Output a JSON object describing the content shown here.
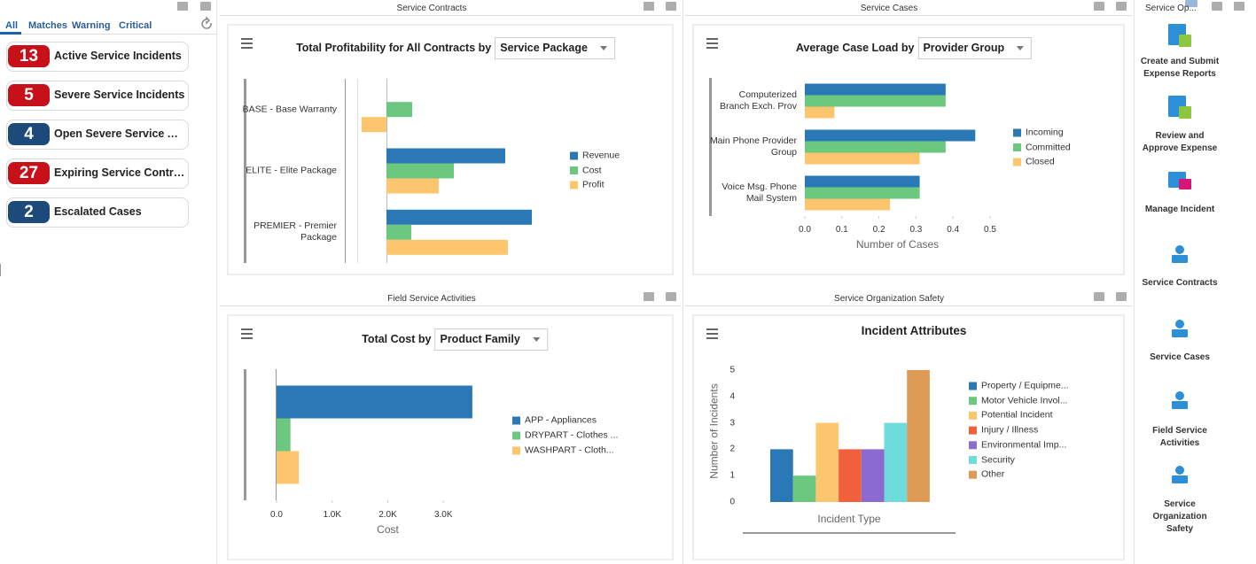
{
  "alerts": {
    "tabs": [
      "All",
      "Matches",
      "Warning",
      "Critical"
    ],
    "active_tab": 0,
    "items": [
      {
        "count": 13,
        "label": "Active Service Incidents",
        "color": "#c8101a"
      },
      {
        "count": 5,
        "label": "Severe Service Incidents",
        "color": "#c8101a"
      },
      {
        "count": 4,
        "label": "Open Severe Service Al...",
        "color": "#1d4a7a"
      },
      {
        "count": 27,
        "label": "Expiring Service Contra...",
        "color": "#c8101a"
      },
      {
        "count": 2,
        "label": "Escalated Cases",
        "color": "#1d4a7a"
      }
    ]
  },
  "panels": [
    "Service Contracts",
    "Service Cases",
    "Field Service Activities",
    "Service Organization Safety"
  ],
  "chart_data": [
    {
      "type": "bar",
      "orientation": "horizontal",
      "title": "Total Profitability for All Contracts by",
      "dropdown": "Service Package",
      "categories": [
        "BASE - Base Warranty",
        "ELITE - Elite Package",
        "PREMIER - Premier Package"
      ],
      "series": [
        {
          "name": "Revenue",
          "color": "#2a78b5",
          "values": [
            null,
            134,
            164
          ]
        },
        {
          "name": "Cost",
          "color": "#6cc77f",
          "values": [
            29,
            76,
            28
          ]
        },
        {
          "name": "Profit",
          "color": "#fdc66e",
          "values": [
            -28,
            59,
            137
          ]
        }
      ],
      "xlim": [
        -33,
        190
      ]
    },
    {
      "type": "bar",
      "orientation": "horizontal",
      "title": "Average Case Load by",
      "dropdown": "Provider Group",
      "categories": [
        "Computerized Branch Exch. Prov",
        "Main Phone Provider Group",
        "Voice Msg. Phone Mail System"
      ],
      "series": [
        {
          "name": "Incoming",
          "color": "#2a78b5",
          "values": [
            0.38,
            0.46,
            0.31
          ]
        },
        {
          "name": "Committed",
          "color": "#6cc77f",
          "values": [
            0.38,
            0.38,
            0.31
          ]
        },
        {
          "name": "Closed",
          "color": "#fdc66e",
          "values": [
            0.08,
            0.31,
            0.23
          ]
        }
      ],
      "xlim": [
        0,
        0.5
      ],
      "xticks": [
        {
          "value": 0,
          "label": "0.0"
        },
        0.1,
        0.2,
        0.3,
        0.4,
        0.5
      ],
      "xlabel": "Number of Cases"
    },
    {
      "type": "bar",
      "orientation": "horizontal",
      "title": "Total Cost by",
      "dropdown": "Product Family",
      "categories": [
        null
      ],
      "series": [
        {
          "name": "APP - Appliances",
          "color": "#2a78b5",
          "values": [
            3520
          ]
        },
        {
          "name": "DRYPART - Clothes ...",
          "color": "#6cc77f",
          "values": [
            250
          ]
        },
        {
          "name": "WASHPART - Cloth...",
          "color": "#fdc66e",
          "values": [
            400
          ]
        }
      ],
      "xlim": [
        0,
        4000
      ],
      "xticks": [
        {
          "value": 0,
          "label": "0.0"
        },
        {
          "value": 1000,
          "label": "1.0K"
        },
        {
          "value": 2000,
          "label": "2.0K"
        },
        {
          "value": 3000,
          "label": "3.0K"
        }
      ],
      "xlabel": "Cost"
    },
    {
      "type": "bar",
      "orientation": "vertical",
      "title": "Incident Attributes",
      "categories": [
        null
      ],
      "series": [
        {
          "name": "Property / Equipme...",
          "color": "#2a78b5",
          "values": [
            2
          ]
        },
        {
          "name": "Motor Vehicle Invol...",
          "color": "#6cc77f",
          "values": [
            1
          ]
        },
        {
          "name": "Potential Incident",
          "color": "#fdc66e",
          "values": [
            3
          ]
        },
        {
          "name": "Injury / Illness",
          "color": "#f0603c",
          "values": [
            2
          ]
        },
        {
          "name": "Environmental Imp...",
          "color": "#8c6bd0",
          "values": [
            2
          ]
        },
        {
          "name": "Security",
          "color": "#6fdcdc",
          "values": [
            3
          ]
        },
        {
          "name": "Other",
          "color": "#de9b55",
          "values": [
            5
          ]
        }
      ],
      "ylim": [
        0,
        5
      ],
      "yticks": [
        0,
        1,
        2,
        3,
        4,
        5
      ],
      "xlabel": "Incident Type",
      "ylabel": "Number of Incidents"
    }
  ],
  "quick_links": {
    "title": "Service Op...",
    "items": [
      "Create and Submit Expense Reports",
      "Review and Approve Expense",
      "Manage Incident",
      "Service Contracts",
      "Service Cases",
      "Field Service Activities",
      "Service Organization Safety"
    ]
  }
}
